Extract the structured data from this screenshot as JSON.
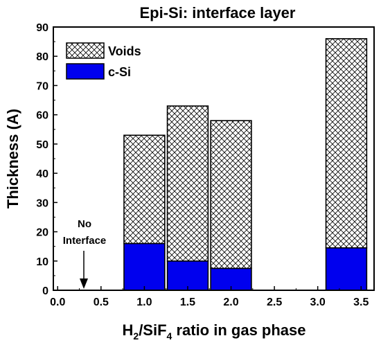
{
  "chart_data": {
    "type": "bar",
    "stacked": true,
    "title": "Epi-Si: interface layer",
    "xlabel_parts": {
      "main": "H",
      "sub1": "2",
      "mid": "/SiF",
      "sub2": "4",
      "rest": " ratio in gas phase"
    },
    "ylabel": "Thickness (A)",
    "xlim": [
      -0.05,
      3.65
    ],
    "ylim": [
      0,
      90
    ],
    "xticks": [
      0.0,
      0.5,
      1.0,
      1.5,
      2.0,
      2.5,
      3.0,
      3.5
    ],
    "xtick_labels": [
      "0.0",
      "0.5",
      "1.0",
      "1.5",
      "2.0",
      "2.5",
      "3.0",
      "3.5"
    ],
    "yticks": [
      0,
      10,
      20,
      30,
      40,
      50,
      60,
      70,
      80,
      90
    ],
    "ytick_labels": [
      "0",
      "10",
      "20",
      "30",
      "40",
      "50",
      "60",
      "70",
      "80",
      "90"
    ],
    "x": [
      1.0,
      1.5,
      2.0,
      3.33
    ],
    "bar_width": 0.47,
    "series": [
      {
        "name": "c-Si",
        "values": [
          16,
          10,
          7.5,
          14.5
        ],
        "color": "#0000ee",
        "pattern": "solid"
      },
      {
        "name": "Voids",
        "values": [
          37,
          53,
          50.5,
          71.5
        ],
        "color": "#ffffff",
        "pattern": "crosshatch"
      }
    ],
    "legend": {
      "placement": "top-left",
      "entries": [
        "Voids",
        "c-Si"
      ]
    },
    "annotation": {
      "lines": [
        "No",
        "Interface"
      ],
      "arrow_x": 0.31,
      "arrow_from_y": 10,
      "arrow_to_y": 0
    }
  }
}
